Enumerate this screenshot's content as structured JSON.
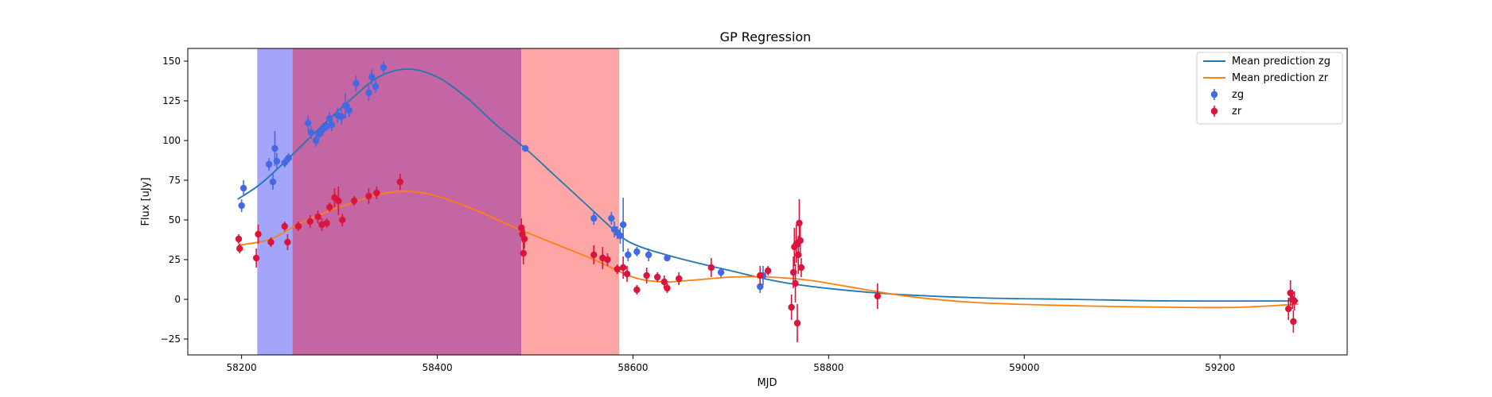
{
  "chart_data": {
    "type": "scatter",
    "title": "GP Regression",
    "xlabel": "MJD",
    "ylabel": "Flux [uJy]",
    "xlim": [
      58145,
      59330
    ],
    "ylim": [
      -35,
      158
    ],
    "xticks": [
      58200,
      58400,
      58600,
      58800,
      59000,
      59200
    ],
    "yticks": [
      -25,
      0,
      25,
      50,
      75,
      100,
      125,
      150
    ],
    "grid": false,
    "legend_position": "top-right",
    "shaded_regions": [
      {
        "x0": 58216,
        "x1": 58252,
        "color": "#a4a4fb"
      },
      {
        "x0": 58252,
        "x1": 58486,
        "color": "#c466a3"
      },
      {
        "x0": 58486,
        "x1": 58586,
        "color": "#fea6a6"
      }
    ],
    "lines": [
      {
        "name": "Mean prediction zg",
        "color": "#1f77b4",
        "x": [
          58196,
          58220,
          58250,
          58280,
          58310,
          58340,
          58370,
          58400,
          58430,
          58460,
          58490,
          58520,
          58550,
          58580,
          58600,
          58640,
          58700,
          58760,
          58850,
          58950,
          59050,
          59150,
          59280
        ],
        "y": [
          63,
          73,
          90,
          108,
          125,
          140,
          145,
          140,
          127,
          110,
          95,
          78,
          61,
          44,
          35,
          27,
          18,
          10,
          4,
          1,
          0,
          -1,
          -1
        ]
      },
      {
        "name": "Mean prediction zr",
        "color": "#ff7f0e",
        "x": [
          58196,
          58230,
          58260,
          58300,
          58340,
          58370,
          58400,
          58440,
          58480,
          58520,
          58560,
          58600,
          58630,
          58660,
          58700,
          58740,
          58780,
          58820,
          58880,
          58950,
          59050,
          59150,
          59220,
          59280
        ],
        "y": [
          34,
          38,
          48,
          58,
          66,
          68,
          65,
          56,
          45,
          35,
          25,
          14,
          11,
          12,
          14,
          14,
          12,
          8,
          2,
          -2,
          -4,
          -5,
          -5,
          -3
        ]
      }
    ],
    "series": [
      {
        "name": "zg",
        "color": "#4169e1",
        "x": [
          58200,
          58202,
          58228,
          58232,
          58234,
          58236,
          58244,
          58248,
          58268,
          58271,
          58276,
          58279,
          58283,
          58287,
          58290,
          58292,
          58298,
          58302,
          58306,
          58310,
          58317,
          58330,
          58333,
          58337,
          58345,
          58490,
          58560,
          58578,
          58581,
          58584,
          58587,
          58590,
          58595,
          58604,
          58616,
          58635,
          58690,
          58730,
          58733
        ],
        "y": [
          59,
          70,
          85,
          74,
          95,
          87,
          86,
          89,
          111,
          105,
          100,
          104,
          107,
          109,
          114,
          110,
          116,
          115,
          122,
          119,
          136,
          130,
          140,
          134,
          146,
          95,
          51,
          51,
          44,
          42,
          40,
          47,
          28,
          30,
          28,
          26,
          17,
          8,
          15
        ],
        "err": [
          4,
          5,
          4,
          5,
          11,
          5,
          3,
          3,
          5,
          4,
          4,
          3,
          4,
          3,
          4,
          4,
          5,
          5,
          8,
          4,
          5,
          5,
          5,
          4,
          4,
          2,
          4,
          4,
          5,
          4,
          5,
          17,
          4,
          3,
          4,
          2,
          3,
          4,
          6
        ]
      },
      {
        "name": "zr",
        "color": "#dc143c",
        "x": [
          58197,
          58198,
          58215,
          58217,
          58230,
          58244,
          58247,
          58258,
          58270,
          58278,
          58282,
          58287,
          58290,
          58295,
          58299,
          58303,
          58315,
          58330,
          58338,
          58362,
          58486,
          58487,
          58488,
          58489,
          58560,
          58569,
          58574,
          58584,
          58590,
          58594,
          58604,
          58614,
          58625,
          58632,
          58635,
          58647,
          58680,
          58730,
          58738,
          58762,
          58764,
          58765,
          58766,
          58767,
          58768,
          58769,
          58770,
          58771,
          58772,
          58850,
          59270,
          59272,
          59274,
          59275,
          59276
        ],
        "y": [
          38,
          32,
          26,
          41,
          36,
          46,
          36,
          46,
          49,
          52,
          47,
          48,
          58,
          64,
          62,
          50,
          62,
          65,
          67,
          74,
          45,
          41,
          29,
          38,
          28,
          26,
          25,
          19,
          20,
          16,
          6,
          15,
          14,
          11,
          7,
          13,
          20,
          15,
          18,
          -5,
          17,
          33,
          10,
          35,
          -15,
          28,
          48,
          37,
          20,
          2,
          -6,
          4,
          0,
          -14,
          -1
        ],
        "err": [
          3,
          3,
          6,
          6,
          3,
          3,
          5,
          3,
          4,
          4,
          4,
          3,
          3,
          6,
          9,
          4,
          3,
          5,
          4,
          5,
          6,
          5,
          7,
          6,
          6,
          7,
          4,
          3,
          7,
          5,
          3,
          5,
          3,
          4,
          3,
          4,
          6,
          6,
          3,
          8,
          10,
          12,
          12,
          12,
          12,
          12,
          15,
          10,
          6,
          8,
          7,
          8,
          6,
          7,
          6
        ]
      }
    ]
  }
}
